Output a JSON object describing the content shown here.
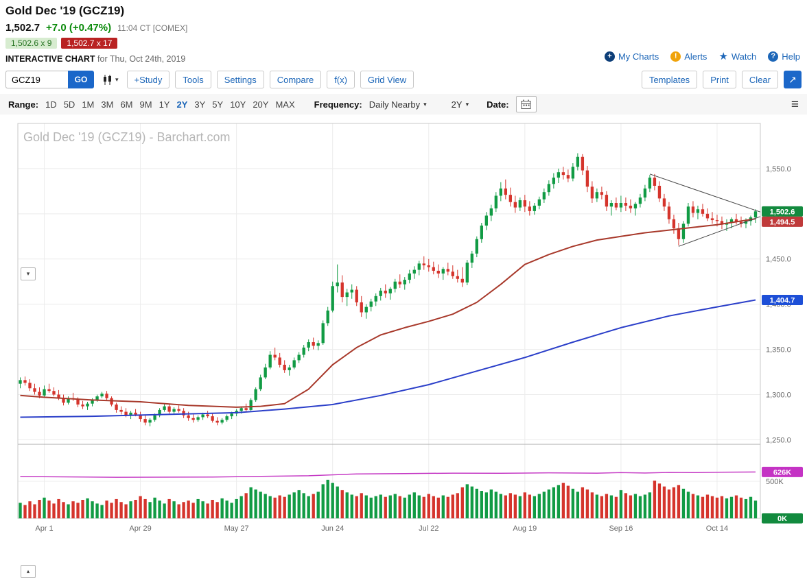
{
  "header": {
    "title": "Gold Dec '19 (GCZ19)",
    "last_price": "1,502.7",
    "change": "+7.0 (+0.47%)",
    "session_info": "11:04 CT [COMEX]",
    "bid": "1,502.6 x 9",
    "ask": "1,502.7 x 17",
    "page_label": "INTERACTIVE CHART",
    "page_date": "for Thu, Oct 24th, 2019",
    "links": [
      {
        "label": "My Charts"
      },
      {
        "label": "Alerts"
      },
      {
        "label": "Watch"
      },
      {
        "label": "Help"
      }
    ]
  },
  "toolbar": {
    "symbol_value": "GCZ19",
    "go_label": "GO",
    "buttons": [
      "+Study",
      "Tools",
      "Settings",
      "Compare",
      "f(x)",
      "Grid View"
    ],
    "right_buttons": [
      "Templates",
      "Print",
      "Clear"
    ]
  },
  "rangebar": {
    "range_label": "Range:",
    "ranges": [
      "1D",
      "5D",
      "1M",
      "3M",
      "6M",
      "9M",
      "1Y",
      "2Y",
      "3Y",
      "5Y",
      "10Y",
      "20Y",
      "MAX"
    ],
    "active_range": "2Y",
    "frequency_label": "Frequency:",
    "frequency_value": "Daily Nearby",
    "period_value": "2Y",
    "date_label": "Date:"
  },
  "icons": {
    "chevron_down": "▾",
    "chevron_up": "▴",
    "hamburger": "≡",
    "popout": "↗",
    "star": "★",
    "alert_mark": "!",
    "help_mark": "?",
    "plus_mark": "+"
  },
  "colors": {
    "accent": "#1c66b8",
    "candle_up": "#119b44",
    "candle_down": "#d5342c",
    "red_ma": "#a8392b",
    "blue_ma": "#2b3fc9",
    "volume_line": "#c53ac5",
    "grid": "#ececec",
    "trendline": "#444444"
  },
  "chart_data": {
    "type": "candlestick",
    "title": "Gold Dec '19 (GCZ19) - Barchart.com",
    "ylim": [
      1245,
      1600
    ],
    "y_ticks": [
      {
        "value": 1550,
        "label": "1,550.0"
      },
      {
        "value": 1500,
        "label": "1,500.0"
      },
      {
        "value": 1450,
        "label": "1,450.0"
      },
      {
        "value": 1400,
        "label": "1,400.0"
      },
      {
        "value": 1350,
        "label": "1,350.0"
      },
      {
        "value": 1300,
        "label": "1,300.0"
      },
      {
        "value": 1250,
        "label": "1,250.0"
      }
    ],
    "x_labels": [
      {
        "day": 5,
        "label": "Apr 1"
      },
      {
        "day": 25,
        "label": "Apr 29"
      },
      {
        "day": 45,
        "label": "May 27"
      },
      {
        "day": 65,
        "label": "Jun 24"
      },
      {
        "day": 85,
        "label": "Jul 22"
      },
      {
        "day": 105,
        "label": "Aug 19"
      },
      {
        "day": 125,
        "label": "Sep 16"
      },
      {
        "day": 145,
        "label": "Oct 14"
      }
    ],
    "candles": [
      [
        1312,
        1319,
        1307,
        1316
      ],
      [
        1316,
        1320,
        1310,
        1313
      ],
      [
        1313,
        1317,
        1304,
        1307
      ],
      [
        1307,
        1312,
        1300,
        1303
      ],
      [
        1303,
        1308,
        1296,
        1299
      ],
      [
        1299,
        1310,
        1297,
        1306
      ],
      [
        1306,
        1312,
        1302,
        1304
      ],
      [
        1304,
        1308,
        1298,
        1300
      ],
      [
        1300,
        1305,
        1294,
        1296
      ],
      [
        1296,
        1300,
        1288,
        1291
      ],
      [
        1291,
        1298,
        1289,
        1296
      ],
      [
        1296,
        1302,
        1293,
        1295
      ],
      [
        1295,
        1297,
        1286,
        1289
      ],
      [
        1289,
        1293,
        1284,
        1287
      ],
      [
        1287,
        1292,
        1283,
        1290
      ],
      [
        1290,
        1296,
        1287,
        1294
      ],
      [
        1294,
        1300,
        1292,
        1298
      ],
      [
        1298,
        1303,
        1296,
        1301
      ],
      [
        1301,
        1304,
        1294,
        1296
      ],
      [
        1296,
        1298,
        1287,
        1289
      ],
      [
        1289,
        1291,
        1280,
        1283
      ],
      [
        1283,
        1287,
        1278,
        1281
      ],
      [
        1281,
        1285,
        1275,
        1277
      ],
      [
        1277,
        1282,
        1273,
        1280
      ],
      [
        1280,
        1284,
        1276,
        1278
      ],
      [
        1278,
        1281,
        1270,
        1273
      ],
      [
        1273,
        1277,
        1266,
        1269
      ],
      [
        1269,
        1274,
        1265,
        1272
      ],
      [
        1272,
        1279,
        1270,
        1277
      ],
      [
        1277,
        1285,
        1275,
        1283
      ],
      [
        1283,
        1290,
        1281,
        1287
      ],
      [
        1287,
        1289,
        1279,
        1281
      ],
      [
        1281,
        1286,
        1278,
        1284
      ],
      [
        1284,
        1288,
        1280,
        1282
      ],
      [
        1282,
        1285,
        1274,
        1277
      ],
      [
        1277,
        1281,
        1271,
        1274
      ],
      [
        1274,
        1278,
        1269,
        1272
      ],
      [
        1272,
        1277,
        1270,
        1275
      ],
      [
        1275,
        1280,
        1272,
        1278
      ],
      [
        1278,
        1282,
        1274,
        1276
      ],
      [
        1276,
        1279,
        1269,
        1271
      ],
      [
        1271,
        1275,
        1266,
        1269
      ],
      [
        1269,
        1274,
        1267,
        1272
      ],
      [
        1272,
        1278,
        1270,
        1276
      ],
      [
        1276,
        1281,
        1273,
        1279
      ],
      [
        1279,
        1284,
        1276,
        1282
      ],
      [
        1282,
        1287,
        1279,
        1285
      ],
      [
        1285,
        1290,
        1281,
        1283
      ],
      [
        1283,
        1296,
        1282,
        1294
      ],
      [
        1294,
        1308,
        1292,
        1306
      ],
      [
        1306,
        1322,
        1304,
        1319
      ],
      [
        1319,
        1334,
        1317,
        1330
      ],
      [
        1330,
        1348,
        1328,
        1344
      ],
      [
        1344,
        1352,
        1338,
        1341
      ],
      [
        1341,
        1346,
        1330,
        1333
      ],
      [
        1333,
        1338,
        1324,
        1327
      ],
      [
        1327,
        1333,
        1321,
        1330
      ],
      [
        1330,
        1341,
        1328,
        1338
      ],
      [
        1338,
        1347,
        1335,
        1344
      ],
      [
        1344,
        1355,
        1341,
        1352
      ],
      [
        1352,
        1361,
        1348,
        1358
      ],
      [
        1358,
        1363,
        1350,
        1354
      ],
      [
        1354,
        1360,
        1349,
        1357
      ],
      [
        1357,
        1382,
        1355,
        1379
      ],
      [
        1379,
        1397,
        1376,
        1393
      ],
      [
        1393,
        1425,
        1391,
        1420
      ],
      [
        1420,
        1444,
        1413,
        1424
      ],
      [
        1424,
        1432,
        1402,
        1408
      ],
      [
        1408,
        1417,
        1398,
        1413
      ],
      [
        1413,
        1422,
        1406,
        1416
      ],
      [
        1416,
        1420,
        1398,
        1402
      ],
      [
        1402,
        1409,
        1386,
        1391
      ],
      [
        1391,
        1400,
        1384,
        1397
      ],
      [
        1397,
        1406,
        1392,
        1403
      ],
      [
        1403,
        1412,
        1398,
        1409
      ],
      [
        1409,
        1418,
        1404,
        1415
      ],
      [
        1415,
        1422,
        1407,
        1412
      ],
      [
        1412,
        1419,
        1405,
        1417
      ],
      [
        1417,
        1428,
        1413,
        1425
      ],
      [
        1425,
        1433,
        1418,
        1422
      ],
      [
        1422,
        1430,
        1416,
        1427
      ],
      [
        1427,
        1438,
        1423,
        1434
      ],
      [
        1434,
        1442,
        1428,
        1438
      ],
      [
        1438,
        1448,
        1432,
        1445
      ],
      [
        1445,
        1453,
        1438,
        1443
      ],
      [
        1443,
        1450,
        1436,
        1441
      ],
      [
        1441,
        1447,
        1433,
        1437
      ],
      [
        1437,
        1444,
        1429,
        1434
      ],
      [
        1434,
        1441,
        1427,
        1439
      ],
      [
        1439,
        1446,
        1432,
        1436
      ],
      [
        1436,
        1443,
        1428,
        1431
      ],
      [
        1431,
        1438,
        1424,
        1428
      ],
      [
        1428,
        1441,
        1419,
        1424
      ],
      [
        1424,
        1449,
        1421,
        1446
      ],
      [
        1446,
        1459,
        1440,
        1456
      ],
      [
        1456,
        1475,
        1452,
        1472
      ],
      [
        1472,
        1490,
        1468,
        1487
      ],
      [
        1487,
        1502,
        1482,
        1498
      ],
      [
        1498,
        1510,
        1492,
        1506
      ],
      [
        1506,
        1524,
        1502,
        1520
      ],
      [
        1520,
        1535,
        1514,
        1528
      ],
      [
        1528,
        1538,
        1516,
        1521
      ],
      [
        1521,
        1529,
        1508,
        1513
      ],
      [
        1513,
        1520,
        1501,
        1507
      ],
      [
        1507,
        1518,
        1503,
        1515
      ],
      [
        1515,
        1521,
        1502,
        1508
      ],
      [
        1508,
        1514,
        1498,
        1503
      ],
      [
        1503,
        1512,
        1499,
        1509
      ],
      [
        1509,
        1519,
        1505,
        1516
      ],
      [
        1516,
        1528,
        1512,
        1524
      ],
      [
        1524,
        1537,
        1520,
        1533
      ],
      [
        1533,
        1545,
        1528,
        1540
      ],
      [
        1540,
        1550,
        1534,
        1546
      ],
      [
        1546,
        1552,
        1538,
        1543
      ],
      [
        1543,
        1549,
        1535,
        1539
      ],
      [
        1539,
        1556,
        1536,
        1552
      ],
      [
        1552,
        1567,
        1548,
        1563
      ],
      [
        1563,
        1566,
        1543,
        1548
      ],
      [
        1548,
        1553,
        1524,
        1530
      ],
      [
        1530,
        1536,
        1512,
        1517
      ],
      [
        1517,
        1528,
        1513,
        1524
      ],
      [
        1524,
        1530,
        1516,
        1521
      ],
      [
        1521,
        1525,
        1503,
        1508
      ],
      [
        1508,
        1515,
        1498,
        1512
      ],
      [
        1512,
        1518,
        1504,
        1507
      ],
      [
        1507,
        1520,
        1502,
        1512
      ],
      [
        1512,
        1518,
        1503,
        1509
      ],
      [
        1509,
        1516,
        1501,
        1506
      ],
      [
        1506,
        1513,
        1498,
        1511
      ],
      [
        1511,
        1522,
        1507,
        1518
      ],
      [
        1518,
        1532,
        1514,
        1528
      ],
      [
        1528,
        1543,
        1524,
        1540
      ],
      [
        1540,
        1544,
        1526,
        1531
      ],
      [
        1531,
        1536,
        1513,
        1517
      ],
      [
        1517,
        1522,
        1503,
        1508
      ],
      [
        1508,
        1513,
        1489,
        1494
      ],
      [
        1494,
        1499,
        1478,
        1484
      ],
      [
        1484,
        1490,
        1465,
        1472
      ],
      [
        1472,
        1492,
        1468,
        1489
      ],
      [
        1489,
        1512,
        1486,
        1508
      ],
      [
        1508,
        1514,
        1496,
        1501
      ],
      [
        1501,
        1509,
        1494,
        1505
      ],
      [
        1505,
        1511,
        1497,
        1500
      ],
      [
        1500,
        1506,
        1492,
        1495
      ],
      [
        1495,
        1502,
        1489,
        1493
      ],
      [
        1493,
        1499,
        1486,
        1492
      ],
      [
        1492,
        1497,
        1483,
        1488
      ],
      [
        1488,
        1494,
        1481,
        1490
      ],
      [
        1490,
        1496,
        1484,
        1494
      ],
      [
        1494,
        1500,
        1488,
        1491
      ],
      [
        1491,
        1497,
        1485,
        1489
      ],
      [
        1489,
        1495,
        1484,
        1492
      ],
      [
        1492,
        1498,
        1487,
        1496
      ],
      [
        1496,
        1505,
        1490,
        1502.7
      ]
    ],
    "red_ma": [
      [
        0,
        1299
      ],
      [
        5,
        1297
      ],
      [
        15,
        1294
      ],
      [
        25,
        1292
      ],
      [
        35,
        1288
      ],
      [
        45,
        1286
      ],
      [
        50,
        1287
      ],
      [
        55,
        1290
      ],
      [
        60,
        1306
      ],
      [
        65,
        1333
      ],
      [
        70,
        1352
      ],
      [
        75,
        1366
      ],
      [
        80,
        1374
      ],
      [
        85,
        1381
      ],
      [
        90,
        1389
      ],
      [
        95,
        1402
      ],
      [
        100,
        1422
      ],
      [
        105,
        1444
      ],
      [
        110,
        1455
      ],
      [
        115,
        1464
      ],
      [
        120,
        1471
      ],
      [
        125,
        1475
      ],
      [
        130,
        1479
      ],
      [
        135,
        1482
      ],
      [
        140,
        1485
      ],
      [
        145,
        1488
      ],
      [
        150,
        1492
      ],
      [
        153,
        1494.5
      ]
    ],
    "blue_ma": [
      [
        0,
        1275
      ],
      [
        15,
        1276
      ],
      [
        30,
        1278
      ],
      [
        45,
        1280
      ],
      [
        55,
        1284
      ],
      [
        65,
        1289
      ],
      [
        75,
        1299
      ],
      [
        85,
        1311
      ],
      [
        95,
        1326
      ],
      [
        105,
        1341
      ],
      [
        115,
        1358
      ],
      [
        125,
        1374
      ],
      [
        135,
        1387
      ],
      [
        145,
        1397
      ],
      [
        153,
        1404.7
      ]
    ],
    "trendlines": [
      [
        [
          131,
          1544
        ],
        [
          154,
          1502
        ]
      ],
      [
        [
          137,
          1464
        ],
        [
          154,
          1497
        ]
      ]
    ],
    "price_badges": [
      {
        "label": "1,502.6",
        "value": 1502.6,
        "color": "#128a3e"
      },
      {
        "label": "1,494.5",
        "value": 1494.5,
        "color": "#bf3a3a"
      },
      {
        "label": "1,404.7",
        "value": 1404.7,
        "color": "#1d4fd7"
      }
    ],
    "volume": {
      "ylim": [
        0,
        1000
      ],
      "ticks": [
        {
          "value": 500,
          "label": "500K"
        }
      ],
      "badge": {
        "label": "626K",
        "value": 626,
        "color": "#c433c4"
      },
      "zero_badge": {
        "label": "0K",
        "value": 0,
        "color": "#128a3e"
      },
      "line": [
        [
          0,
          565
        ],
        [
          20,
          555
        ],
        [
          40,
          558
        ],
        [
          60,
          575
        ],
        [
          70,
          600
        ],
        [
          80,
          605
        ],
        [
          90,
          610
        ],
        [
          100,
          608
        ],
        [
          110,
          615
        ],
        [
          120,
          610
        ],
        [
          125,
          618
        ],
        [
          130,
          612
        ],
        [
          135,
          620
        ],
        [
          140,
          618
        ],
        [
          145,
          622
        ],
        [
          153,
          626
        ]
      ],
      "values": [
        210,
        180,
        230,
        190,
        250,
        280,
        240,
        200,
        260,
        220,
        190,
        230,
        210,
        250,
        270,
        230,
        200,
        180,
        240,
        210,
        260,
        220,
        190,
        230,
        250,
        300,
        260,
        220,
        280,
        240,
        200,
        260,
        230,
        190,
        220,
        240,
        210,
        260,
        230,
        200,
        250,
        220,
        270,
        240,
        210,
        260,
        300,
        340,
        420,
        390,
        360,
        330,
        300,
        280,
        310,
        290,
        320,
        350,
        380,
        340,
        300,
        330,
        360,
        460,
        520,
        480,
        430,
        380,
        350,
        320,
        300,
        340,
        310,
        280,
        300,
        320,
        290,
        310,
        330,
        300,
        280,
        320,
        350,
        310,
        290,
        330,
        300,
        280,
        310,
        290,
        320,
        340,
        420,
        460,
        430,
        400,
        370,
        350,
        390,
        360,
        330,
        310,
        340,
        320,
        300,
        350,
        320,
        300,
        330,
        360,
        390,
        420,
        450,
        480,
        440,
        400,
        360,
        420,
        390,
        350,
        320,
        300,
        330,
        310,
        290,
        380,
        340,
        310,
        330,
        300,
        320,
        350,
        510,
        470,
        430,
        390,
        420,
        450,
        400,
        360,
        330,
        310,
        290,
        320,
        300,
        280,
        300,
        270,
        290,
        310,
        280,
        260,
        290,
        240
      ]
    }
  }
}
